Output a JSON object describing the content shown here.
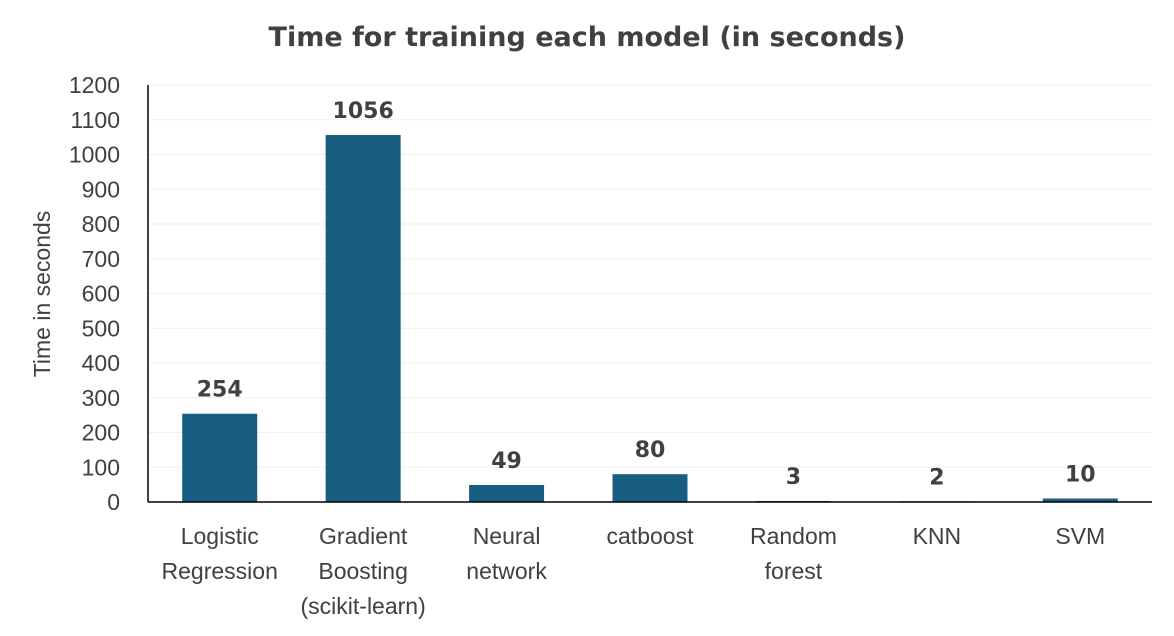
{
  "chart_data": {
    "type": "bar",
    "title": "Time for training each model (in seconds)",
    "ylabel": "Time in seconds",
    "xlabel": "",
    "categories": [
      [
        "Logistic",
        "Regression"
      ],
      [
        "Gradient",
        "Boosting",
        "(scikit-learn)"
      ],
      [
        "Neural",
        "network"
      ],
      [
        "catboost"
      ],
      [
        "Random",
        "forest"
      ],
      [
        "KNN"
      ],
      [
        "SVM"
      ]
    ],
    "values": [
      254,
      1056,
      49,
      80,
      3,
      2,
      10
    ],
    "data_labels": [
      "254",
      "1056",
      "49",
      "80",
      "3",
      "2",
      "10"
    ],
    "ylim": [
      0,
      1200
    ],
    "yticks": [
      "0",
      "100",
      "200",
      "300",
      "400",
      "500",
      "600",
      "700",
      "800",
      "900",
      "1000",
      "1100",
      "1200"
    ],
    "grid": true,
    "legend": "none",
    "bar_color": "#175e82",
    "grid_color": "#efefef",
    "axis_color": "#000000"
  }
}
